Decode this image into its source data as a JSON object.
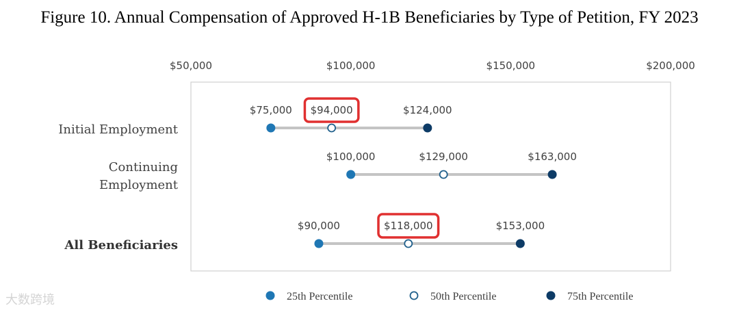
{
  "chart_data": {
    "type": "dot-range",
    "title": "Figure 10. Annual Compensation of Approved H-1B Beneficiaries by Type of Petition, FY 2023",
    "xlim": [
      50000,
      200000
    ],
    "x_ticks": [
      50000,
      100000,
      150000,
      200000
    ],
    "x_tick_labels": [
      "$50,000",
      "$100,000",
      "$150,000",
      "$200,000"
    ],
    "x_axis_position": "top",
    "grid": false,
    "legend_position": "bottom",
    "categories": [
      {
        "label": "Initial Employment",
        "label_lines": [
          "Initial Employment"
        ],
        "bold": false
      },
      {
        "label": "Continuing Employment",
        "label_lines": [
          "Continuing",
          "Employment"
        ],
        "bold": false
      },
      {
        "label": "All Beneficiaries",
        "label_lines": [
          "All Beneficiaries"
        ],
        "bold": true
      }
    ],
    "series": [
      {
        "name": "25th Percentile",
        "values": [
          75000,
          100000,
          90000
        ],
        "value_labels": [
          "$75,000",
          "$100,000",
          "$90,000"
        ],
        "color": "#1f77b4",
        "marker": "filled"
      },
      {
        "name": "50th Percentile",
        "values": [
          94000,
          129000,
          118000
        ],
        "value_labels": [
          "$94,000",
          "$129,000",
          "$118,000"
        ],
        "color": "#1f5f8b",
        "marker": "hollow"
      },
      {
        "name": "75th Percentile",
        "values": [
          124000,
          163000,
          153000
        ],
        "value_labels": [
          "$124,000",
          "$163,000",
          "$153,000"
        ],
        "color": "#0d3b66",
        "marker": "filled"
      }
    ],
    "highlighted_labels": [
      {
        "category_index": 0,
        "series_index": 1
      },
      {
        "category_index": 2,
        "series_index": 1
      }
    ],
    "colors": {
      "range_line": "#c4c4c4",
      "plot_border": "#d0d0d0",
      "highlight_box": "#e03030"
    }
  },
  "watermark": "大数跨境"
}
